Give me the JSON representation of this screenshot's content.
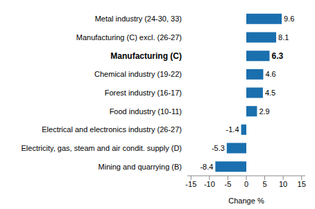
{
  "chart_data": {
    "type": "bar",
    "orientation": "horizontal",
    "categories": [
      "Metal industry (24-30, 33)",
      "Manufacturing (C) excl. (26-27)",
      "Manufacturing (C)",
      "Chemical industry (19-22)",
      "Forest industry (16-17)",
      "Food industry (10-11)",
      "Electrical and electronics industry (26-27)",
      "Electricity, gas, steam and air condit. supply (D)",
      "Mining and quarrying (B)"
    ],
    "values": [
      9.6,
      8.1,
      6.3,
      4.6,
      4.5,
      2.9,
      -1.4,
      -5.3,
      -8.4
    ],
    "color": "#1a6fae",
    "x_label": "Change %",
    "xlim": [
      -16,
      16
    ],
    "xticks": [
      -15,
      -10,
      -5,
      0,
      5,
      10,
      15
    ],
    "grid": false,
    "data_labels": true
  }
}
